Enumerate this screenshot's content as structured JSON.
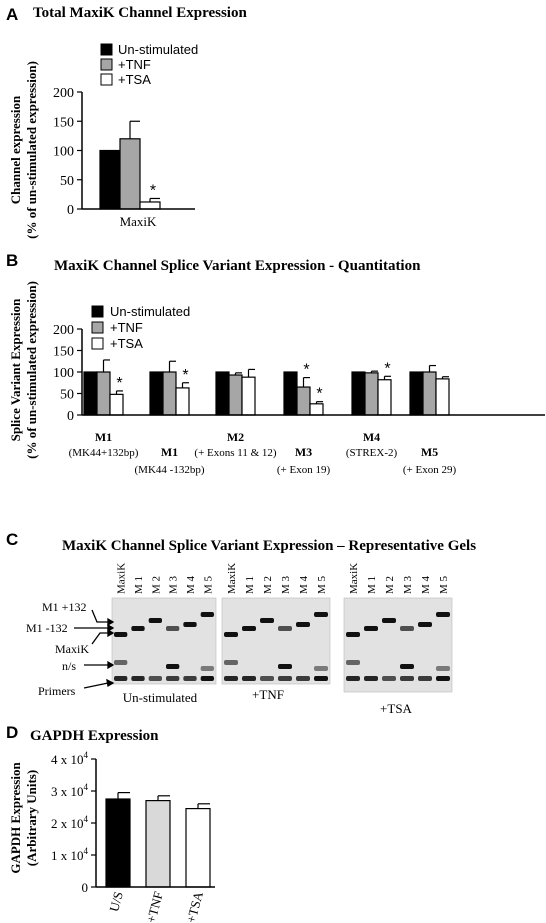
{
  "panel_a": {
    "letter": "A",
    "title": "Total MaxiK Channel Expression",
    "ylabel_line1": "Channel expression",
    "ylabel_line2": "(% of un-stimulated expression)",
    "legend": [
      "Un-stimulated",
      "+TNF",
      "+TSA"
    ],
    "chart_data": {
      "type": "bar",
      "categories": [
        "MaxiK"
      ],
      "series": [
        {
          "name": "Un-stimulated",
          "values": [
            100
          ],
          "errors": [
            0
          ],
          "color": "#000000"
        },
        {
          "name": "+TNF",
          "values": [
            120
          ],
          "errors": [
            30
          ],
          "color": "#a6a6a6"
        },
        {
          "name": "+TSA",
          "values": [
            12
          ],
          "errors": [
            6
          ],
          "color": "#ffffff"
        }
      ],
      "significant": [
        [
          false,
          false,
          true
        ]
      ],
      "yticks": [
        "0",
        "50",
        "100",
        "150",
        "200"
      ],
      "ylim": [
        0,
        200
      ]
    }
  },
  "panel_b": {
    "letter": "B",
    "title": "MaxiK Channel Splice Variant Expression  - Quantitation",
    "ylabel_line1": "Splice Variant Expression",
    "ylabel_line2": "(% of un-stimulated expression)",
    "legend": [
      "Un-stimulated",
      "+TNF",
      "+TSA"
    ],
    "chart_data": {
      "type": "bar",
      "categories": [
        "M1",
        "M1",
        "M2",
        "M3",
        "M4",
        "M5"
      ],
      "sublabels": [
        "(MK44+132bp)",
        "(MK44 -132bp)",
        "(+ Exons 11 & 12)",
        "(+ Exon 19)",
        "(STREX-2)",
        "(+ Exon 29)"
      ],
      "series": [
        {
          "name": "Un-stimulated",
          "values": [
            100,
            100,
            100,
            100,
            100,
            100
          ],
          "errors": [
            0,
            0,
            0,
            0,
            0,
            0
          ],
          "color": "#000000"
        },
        {
          "name": "+TNF",
          "values": [
            100,
            100,
            93,
            65,
            98,
            100
          ],
          "errors": [
            28,
            25,
            5,
            22,
            4,
            15
          ],
          "color": "#a6a6a6"
        },
        {
          "name": "+TSA",
          "values": [
            48,
            63,
            88,
            26,
            82,
            84
          ],
          "errors": [
            8,
            12,
            18,
            5,
            8,
            5
          ],
          "color": "#ffffff"
        }
      ],
      "significant": [
        [
          false,
          false,
          true
        ],
        [
          false,
          false,
          true
        ],
        [
          false,
          false,
          false
        ],
        [
          false,
          true,
          true
        ],
        [
          false,
          false,
          true
        ],
        [
          false,
          false,
          false
        ]
      ],
      "yticks": [
        "0",
        "50",
        "100",
        "150",
        "200"
      ],
      "ylim": [
        0,
        200
      ]
    }
  },
  "panel_c": {
    "letter": "C",
    "title": "MaxiK Channel Splice Variant Expression – Representative Gels",
    "lane_labels": [
      "MaxiK",
      "M 1",
      "M 2",
      "M 3",
      "M 4",
      "M 5"
    ],
    "gel_titles": [
      "Un-stimulated",
      "+TNF",
      "+TSA"
    ],
    "band_labels": [
      "M1 +132",
      "M1 -132",
      "MaxiK",
      "n/s",
      "Primers"
    ]
  },
  "panel_d": {
    "letter": "D",
    "title": "GAPDH Expression",
    "ylabel_line1": "GAPDH Expression",
    "ylabel_line2": "(Arbitrary Units)",
    "chart_data": {
      "type": "bar",
      "categories": [
        "U/S",
        "+TNF",
        "+TSA"
      ],
      "values": [
        27500,
        27000,
        24500
      ],
      "errors": [
        2000,
        1500,
        1500
      ],
      "colors": [
        "#000000",
        "#d9d9d9",
        "#ffffff"
      ],
      "ytick_values": [
        0,
        10000,
        20000,
        30000,
        40000
      ],
      "ytick_coef": [
        "",
        "1 x 10",
        "2 x 10",
        "3 x 10",
        "4 x 10"
      ],
      "ytick_exp": [
        "",
        "4",
        "4",
        "4",
        "4"
      ],
      "ytick_zero": "0",
      "ylim": [
        0,
        40000
      ]
    }
  },
  "significance_marker": "*"
}
